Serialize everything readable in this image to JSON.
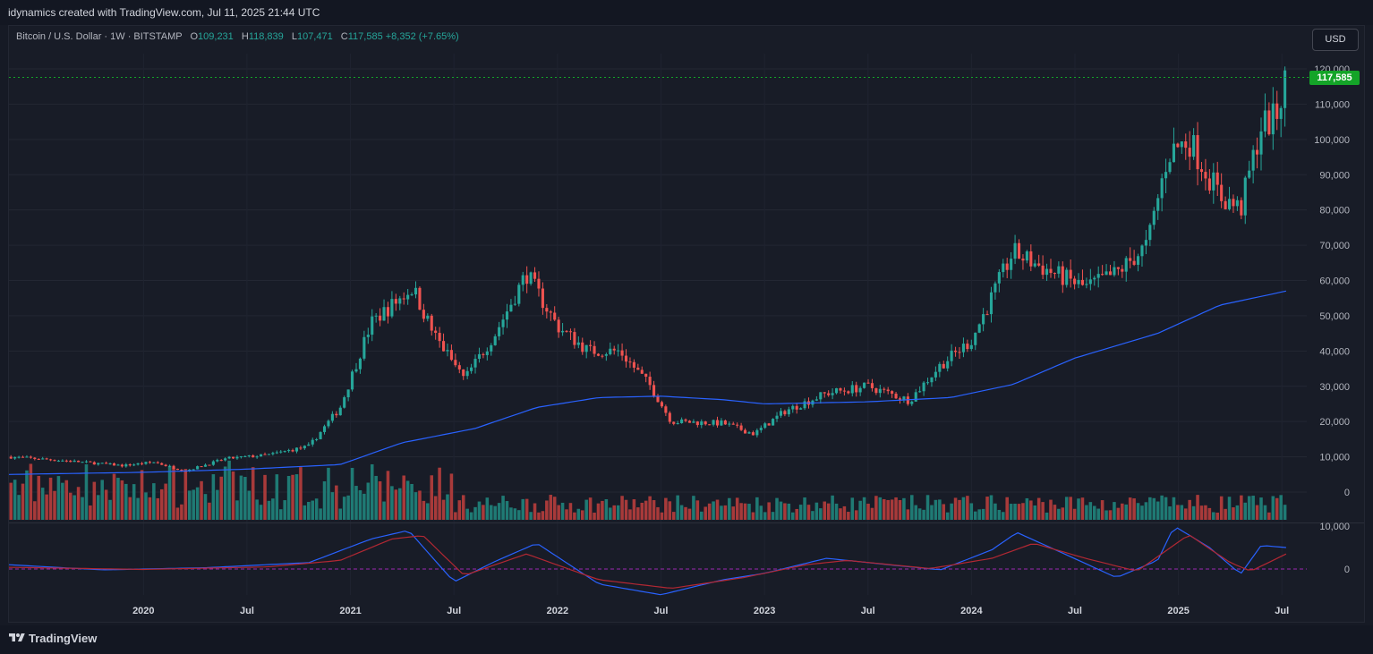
{
  "header": {
    "credit": "idynamics created with TradingView.com, Jul 11, 2025 21:44 UTC"
  },
  "legend": {
    "symbol": "Bitcoin / U.S. Dollar · 1W · BITSTAMP",
    "o_label": "O",
    "o_value": "109,231",
    "h_label": "H",
    "h_value": "118,839",
    "l_label": "L",
    "l_value": "107,471",
    "c_label": "C",
    "c_value": "117,585",
    "change": "+8,352 (+7.65%)"
  },
  "currency_button": "USD",
  "last_price": "117,585",
  "footer": {
    "brand": "TradingView"
  },
  "colors": {
    "up": "#26a69a",
    "down": "#ef5350",
    "ma": "#2962ff",
    "macd": "#2962ff",
    "signal": "#b22833",
    "last_price": "#14a428"
  },
  "chart_data": {
    "type": "candlestick",
    "price_axis": {
      "ticks": [
        0,
        10000,
        20000,
        30000,
        40000,
        50000,
        60000,
        70000,
        80000,
        90000,
        100000,
        110000,
        120000
      ],
      "labels": [
        "0",
        "10,000",
        "20,000",
        "30,000",
        "40,000",
        "50,000",
        "60,000",
        "70,000",
        "80,000",
        "90,000",
        "100,000",
        "110,000",
        "120,000"
      ]
    },
    "indicator_axis": {
      "ticks": [
        0,
        10000
      ],
      "labels": [
        "0",
        "10,000"
      ]
    },
    "time_axis": {
      "labels": [
        "2020",
        "Jul",
        "2021",
        "Jul",
        "2022",
        "Jul",
        "2023",
        "Jul",
        "2024",
        "Jul",
        "2025",
        "Jul"
      ],
      "years": [
        2020,
        2020.5,
        2021,
        2021.5,
        2022,
        2022.5,
        2023,
        2023.5,
        2024,
        2024.5,
        2025,
        2025.5
      ]
    },
    "price_keypoints": [
      [
        2019.35,
        10000
      ],
      [
        2019.6,
        9000
      ],
      [
        2019.9,
        7500
      ],
      [
        2020.05,
        8500
      ],
      [
        2020.2,
        6000
      ],
      [
        2020.4,
        9500
      ],
      [
        2020.6,
        10500
      ],
      [
        2020.8,
        13000
      ],
      [
        2020.95,
        24000
      ],
      [
        2021.1,
        48000
      ],
      [
        2021.3,
        58000
      ],
      [
        2021.4,
        45000
      ],
      [
        2021.55,
        32000
      ],
      [
        2021.7,
        45000
      ],
      [
        2021.85,
        62000
      ],
      [
        2022.0,
        47000
      ],
      [
        2022.15,
        40000
      ],
      [
        2022.3,
        40000
      ],
      [
        2022.45,
        30000
      ],
      [
        2022.55,
        20000
      ],
      [
        2022.8,
        19500
      ],
      [
        2022.95,
        16500
      ],
      [
        2023.1,
        23000
      ],
      [
        2023.3,
        28000
      ],
      [
        2023.5,
        30000
      ],
      [
        2023.7,
        26000
      ],
      [
        2023.85,
        36000
      ],
      [
        2024.0,
        43000
      ],
      [
        2024.2,
        68000
      ],
      [
        2024.4,
        62000
      ],
      [
        2024.55,
        58000
      ],
      [
        2024.7,
        62000
      ],
      [
        2024.85,
        70000
      ],
      [
        2024.95,
        96000
      ],
      [
        2025.05,
        100000
      ],
      [
        2025.2,
        84000
      ],
      [
        2025.3,
        80000
      ],
      [
        2025.4,
        104000
      ],
      [
        2025.47,
        106000
      ],
      [
        2025.52,
        117585
      ]
    ],
    "ma_keypoints": [
      [
        2019.35,
        5000
      ],
      [
        2020.0,
        5600
      ],
      [
        2020.5,
        6500
      ],
      [
        2020.95,
        7800
      ],
      [
        2021.25,
        14000
      ],
      [
        2021.6,
        18000
      ],
      [
        2021.9,
        24000
      ],
      [
        2022.2,
        26800
      ],
      [
        2022.5,
        27200
      ],
      [
        2022.8,
        26200
      ],
      [
        2023.0,
        25000
      ],
      [
        2023.5,
        25600
      ],
      [
        2023.9,
        26800
      ],
      [
        2024.2,
        30500
      ],
      [
        2024.5,
        38000
      ],
      [
        2024.9,
        45000
      ],
      [
        2025.2,
        53000
      ],
      [
        2025.52,
        57000
      ]
    ],
    "macd_keypoints": [
      [
        2019.35,
        1000
      ],
      [
        2019.8,
        -200
      ],
      [
        2020.3,
        300
      ],
      [
        2020.8,
        1500
      ],
      [
        2021.1,
        7000
      ],
      [
        2021.28,
        9000
      ],
      [
        2021.5,
        -3000
      ],
      [
        2021.7,
        1800
      ],
      [
        2021.9,
        6000
      ],
      [
        2022.2,
        -3500
      ],
      [
        2022.5,
        -6000
      ],
      [
        2022.8,
        -2500
      ],
      [
        2023.0,
        -1000
      ],
      [
        2023.3,
        2500
      ],
      [
        2023.6,
        1000
      ],
      [
        2023.85,
        -200
      ],
      [
        2024.1,
        4500
      ],
      [
        2024.22,
        8500
      ],
      [
        2024.45,
        3500
      ],
      [
        2024.7,
        -2000
      ],
      [
        2024.9,
        2000
      ],
      [
        2024.98,
        10000
      ],
      [
        2025.15,
        5000
      ],
      [
        2025.3,
        -1200
      ],
      [
        2025.4,
        5500
      ],
      [
        2025.52,
        5000
      ]
    ],
    "signal_keypoints": [
      [
        2019.35,
        400
      ],
      [
        2020.0,
        -100
      ],
      [
        2020.6,
        500
      ],
      [
        2020.95,
        2000
      ],
      [
        2021.2,
        7000
      ],
      [
        2021.35,
        7800
      ],
      [
        2021.55,
        -1500
      ],
      [
        2021.85,
        3500
      ],
      [
        2022.2,
        -2500
      ],
      [
        2022.55,
        -4500
      ],
      [
        2022.9,
        -2000
      ],
      [
        2023.2,
        1000
      ],
      [
        2023.4,
        2000
      ],
      [
        2023.8,
        100
      ],
      [
        2024.1,
        2500
      ],
      [
        2024.3,
        6000
      ],
      [
        2024.55,
        2500
      ],
      [
        2024.8,
        -500
      ],
      [
        2025.05,
        8000
      ],
      [
        2025.25,
        1500
      ],
      [
        2025.35,
        -500
      ],
      [
        2025.52,
        3500
      ]
    ]
  }
}
